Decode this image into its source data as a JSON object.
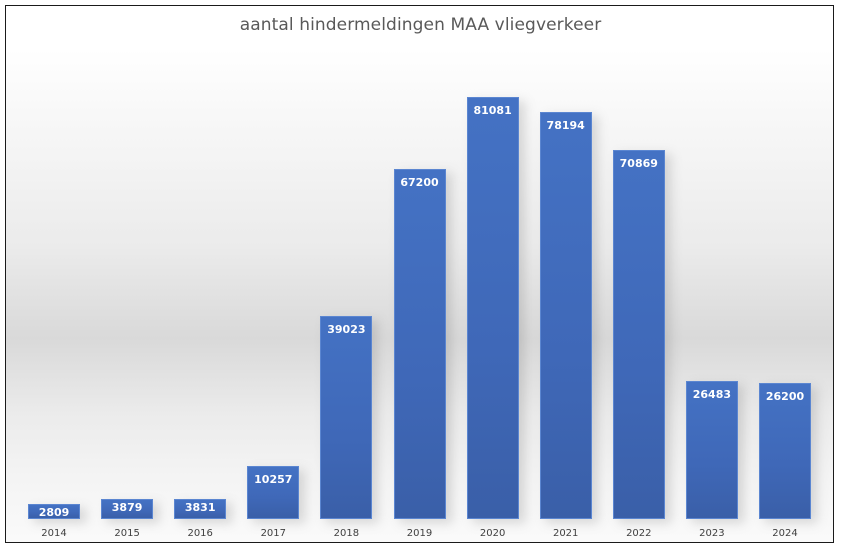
{
  "chart_data": {
    "type": "bar",
    "title": "aantal hindermeldingen MAA vliegverkeer",
    "xlabel": "",
    "ylabel": "",
    "categories": [
      "2014",
      "2015",
      "2016",
      "2017",
      "2018",
      "2019",
      "2020",
      "2021",
      "2022",
      "2023",
      "2024"
    ],
    "values": [
      2809,
      3879,
      3831,
      10257,
      39023,
      67200,
      81081,
      78194,
      70869,
      26483,
      26200
    ],
    "series": [
      {
        "name": "aantal hindermeldingen",
        "values": [
          2809,
          3879,
          3831,
          10257,
          39023,
          67200,
          81081,
          78194,
          70869,
          26483,
          26200
        ]
      }
    ],
    "data_labels": true,
    "grid": false,
    "legend": "none",
    "y_axis_visible": false,
    "bar_color": "#4472C4"
  },
  "labels": {
    "title": "aantal hindermeldingen MAA vliegverkeer",
    "bars": [
      "2809",
      "3879",
      "3831",
      "10257",
      "39023",
      "67200",
      "81081",
      "78194",
      "70869",
      "26483",
      "26200"
    ],
    "years": [
      "2014",
      "2015",
      "2016",
      "2017",
      "2018",
      "2019",
      "2020",
      "2021",
      "2022",
      "2023",
      "2024"
    ]
  }
}
